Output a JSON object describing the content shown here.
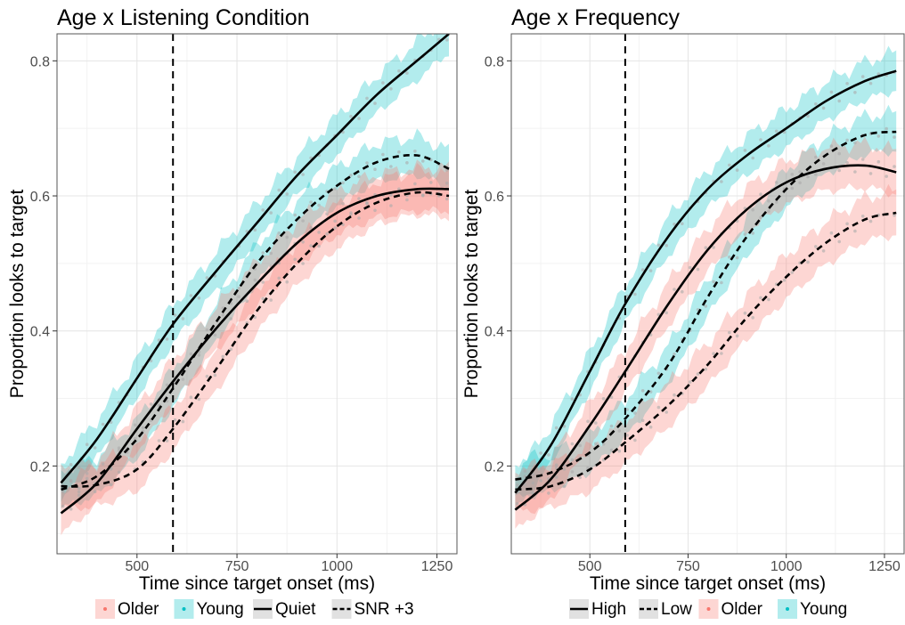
{
  "chart_data": [
    {
      "type": "line",
      "title": "Age x Listening Condition",
      "xlabel": "Time since target onset (ms)",
      "ylabel": "Proportion looks to target",
      "xlim": [
        300,
        1300
      ],
      "ylim": [
        0.07,
        0.84
      ],
      "x_ticks": [
        500,
        750,
        1000,
        1250
      ],
      "x_tick_labels": [
        "500",
        "750",
        "1000",
        "1250"
      ],
      "y_ticks": [
        0.2,
        0.4,
        0.6,
        0.8
      ],
      "y_tick_labels": [
        "0.2",
        "0.4",
        "0.6",
        "0.8"
      ],
      "vline": 590,
      "vline_style": "dashed",
      "grid": true,
      "legend": {
        "placement": "bottom",
        "entries": [
          {
            "label": "Older",
            "kind": "fill",
            "color": "#f8766d"
          },
          {
            "label": "Young",
            "kind": "fill",
            "color": "#00bfc4"
          },
          {
            "label": "Quiet",
            "kind": "line",
            "linestyle": "solid"
          },
          {
            "label": "SNR +3",
            "kind": "line",
            "linestyle": "dashed"
          }
        ]
      },
      "series": [
        {
          "group": "Young",
          "condition": "Quiet",
          "color": "#00bfc4",
          "linestyle": "solid",
          "x": [
            310,
            400,
            500,
            590,
            700,
            800,
            900,
            1000,
            1100,
            1200,
            1280
          ],
          "y": [
            0.175,
            0.24,
            0.33,
            0.41,
            0.49,
            0.56,
            0.63,
            0.69,
            0.75,
            0.8,
            0.84
          ]
        },
        {
          "group": "Young",
          "condition": "SNR +3",
          "color": "#00bfc4",
          "linestyle": "dashed",
          "x": [
            310,
            400,
            500,
            590,
            700,
            800,
            900,
            1000,
            1100,
            1200,
            1280
          ],
          "y": [
            0.165,
            0.185,
            0.24,
            0.315,
            0.415,
            0.5,
            0.565,
            0.615,
            0.65,
            0.66,
            0.64
          ]
        },
        {
          "group": "Older",
          "condition": "Quiet",
          "color": "#f8766d",
          "linestyle": "solid",
          "x": [
            310,
            400,
            500,
            590,
            700,
            800,
            900,
            1000,
            1100,
            1200,
            1280
          ],
          "y": [
            0.13,
            0.175,
            0.255,
            0.325,
            0.405,
            0.47,
            0.53,
            0.575,
            0.6,
            0.61,
            0.61
          ]
        },
        {
          "group": "Older",
          "condition": "SNR +3",
          "color": "#f8766d",
          "linestyle": "dashed",
          "x": [
            310,
            400,
            500,
            590,
            700,
            800,
            900,
            1000,
            1100,
            1200,
            1280
          ],
          "y": [
            0.17,
            0.172,
            0.195,
            0.255,
            0.345,
            0.43,
            0.5,
            0.555,
            0.59,
            0.605,
            0.6
          ]
        }
      ]
    },
    {
      "type": "line",
      "title": "Age x Frequency",
      "xlabel": "Time since target onset (ms)",
      "ylabel": "Proportion looks to target",
      "xlim": [
        300,
        1300
      ],
      "ylim": [
        0.07,
        0.84
      ],
      "x_ticks": [
        500,
        750,
        1000,
        1250
      ],
      "x_tick_labels": [
        "500",
        "750",
        "1000",
        "1250"
      ],
      "y_ticks": [
        0.2,
        0.4,
        0.6,
        0.8
      ],
      "y_tick_labels": [
        "0.2",
        "0.4",
        "0.6",
        "0.8"
      ],
      "vline": 590,
      "vline_style": "dashed",
      "grid": true,
      "legend": {
        "placement": "bottom",
        "entries": [
          {
            "label": "High",
            "kind": "line",
            "linestyle": "solid"
          },
          {
            "label": "Low",
            "kind": "line",
            "linestyle": "dashed"
          },
          {
            "label": "Older",
            "kind": "fill",
            "color": "#f8766d"
          },
          {
            "label": "Young",
            "kind": "fill",
            "color": "#00bfc4"
          }
        ]
      },
      "series": [
        {
          "group": "Young",
          "condition": "High",
          "color": "#00bfc4",
          "linestyle": "solid",
          "x": [
            310,
            400,
            500,
            590,
            700,
            800,
            900,
            1000,
            1100,
            1200,
            1280
          ],
          "y": [
            0.16,
            0.23,
            0.34,
            0.44,
            0.54,
            0.61,
            0.66,
            0.7,
            0.74,
            0.77,
            0.785
          ]
        },
        {
          "group": "Young",
          "condition": "Low",
          "color": "#00bfc4",
          "linestyle": "dashed",
          "x": [
            310,
            400,
            500,
            590,
            700,
            800,
            900,
            1000,
            1100,
            1200,
            1280
          ],
          "y": [
            0.18,
            0.19,
            0.22,
            0.27,
            0.35,
            0.45,
            0.54,
            0.61,
            0.66,
            0.69,
            0.695
          ]
        },
        {
          "group": "Older",
          "condition": "High",
          "color": "#f8766d",
          "linestyle": "solid",
          "x": [
            310,
            400,
            500,
            590,
            700,
            800,
            900,
            1000,
            1100,
            1200,
            1280
          ],
          "y": [
            0.135,
            0.18,
            0.26,
            0.34,
            0.44,
            0.52,
            0.58,
            0.62,
            0.64,
            0.645,
            0.635
          ]
        },
        {
          "group": "Older",
          "condition": "Low",
          "color": "#f8766d",
          "linestyle": "dashed",
          "x": [
            310,
            400,
            500,
            590,
            700,
            800,
            900,
            1000,
            1100,
            1200,
            1280
          ],
          "y": [
            0.165,
            0.17,
            0.195,
            0.235,
            0.29,
            0.35,
            0.42,
            0.48,
            0.53,
            0.565,
            0.575
          ]
        }
      ]
    }
  ]
}
